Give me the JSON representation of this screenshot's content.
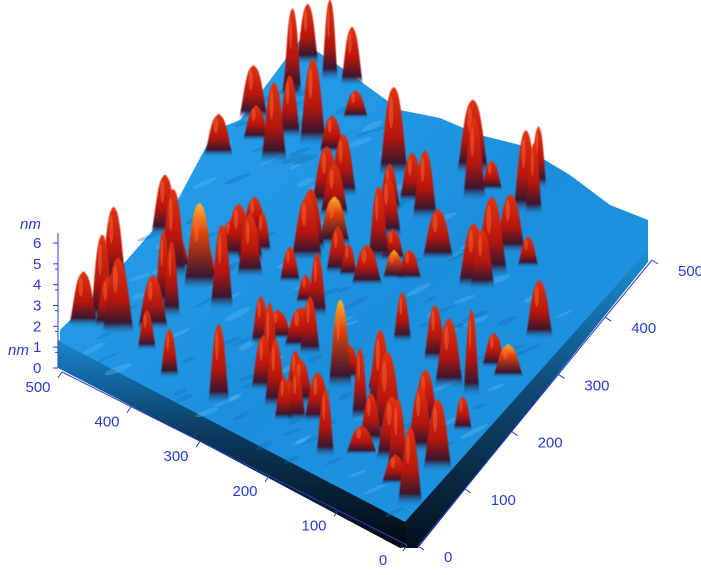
{
  "chart_data": {
    "type": "surface3d",
    "title": "",
    "z_axis": {
      "unit": "nm",
      "ticks": [
        "0",
        "1",
        "2",
        "3",
        "4",
        "5",
        "6"
      ],
      "range": [
        0,
        6
      ],
      "unit_top": "nm",
      "unit_low": "nm"
    },
    "left_axis": {
      "ticks": [
        "500",
        "400",
        "300",
        "200",
        "100",
        "0"
      ],
      "range": [
        0,
        500
      ]
    },
    "right_axis": {
      "ticks": [
        "0",
        "100",
        "200",
        "300",
        "400",
        "500"
      ],
      "range": [
        0,
        500
      ]
    },
    "colors": {
      "base": "#1f9ae6",
      "shadow": "#041018",
      "peak": "#d5200e",
      "peak_top": "#ffa020",
      "axis": "#2a3ccf"
    },
    "peaks_count": 110
  }
}
